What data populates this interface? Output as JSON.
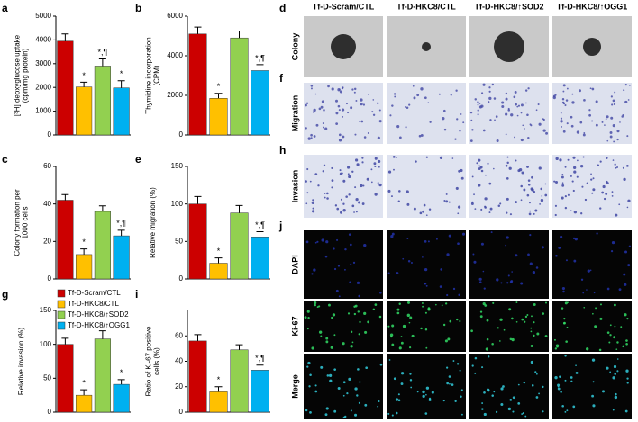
{
  "chart_data": [
    {
      "type": "bar",
      "panel": "a",
      "ylabel": [
        "[³H] deoxyglucose uptake",
        "(cpm/mg protein)"
      ],
      "ylim": [
        0,
        5000
      ],
      "yticks": [
        0,
        1000,
        2000,
        3000,
        4000,
        5000
      ],
      "values": [
        3950,
        2020,
        2900,
        1980
      ],
      "errors": [
        300,
        200,
        300,
        300
      ],
      "annotations": [
        null,
        "*",
        "*,¶",
        "*"
      ]
    },
    {
      "type": "bar",
      "panel": "b",
      "ylabel": [
        "Thymidine incorporation",
        "(CPM)"
      ],
      "ylim": [
        0,
        6000
      ],
      "yticks": [
        0,
        2000,
        4000,
        6000
      ],
      "values": [
        5100,
        1850,
        4900,
        3250
      ],
      "errors": [
        350,
        250,
        350,
        300
      ],
      "annotations": [
        null,
        "*",
        null,
        "*,¶"
      ]
    },
    {
      "type": "bar",
      "panel": "c",
      "ylabel": [
        "Colony formation per",
        "1000 cells"
      ],
      "ylim": [
        0,
        60
      ],
      "yticks": [
        0,
        20,
        40,
        60
      ],
      "values": [
        42,
        13,
        36,
        23
      ],
      "errors": [
        3,
        3,
        3,
        3
      ],
      "annotations": [
        null,
        "*",
        null,
        "*,¶"
      ]
    },
    {
      "type": "bar",
      "panel": "e",
      "ylabel": [
        "Relative migration (%)"
      ],
      "ylim": [
        0,
        150
      ],
      "yticks": [
        0,
        50,
        100,
        150
      ],
      "values": [
        100,
        21,
        88,
        56
      ],
      "errors": [
        10,
        7,
        10,
        7
      ],
      "annotations": [
        null,
        "*",
        null,
        "*,¶"
      ]
    },
    {
      "type": "bar",
      "panel": "g",
      "ylabel": [
        "Relative invasion (%)"
      ],
      "ylim": [
        0,
        150
      ],
      "yticks": [
        0,
        50,
        100,
        150
      ],
      "values": [
        100,
        25,
        108,
        41
      ],
      "errors": [
        9,
        8,
        12,
        7
      ],
      "annotations": [
        null,
        "*",
        null,
        "*"
      ]
    },
    {
      "type": "bar",
      "panel": "i",
      "ylabel": [
        "Ratio of Ki-67 positive",
        "cells (%)"
      ],
      "ylim": [
        0,
        80
      ],
      "yticks": [
        0,
        20,
        40,
        60
      ],
      "values": [
        56,
        16,
        49,
        33
      ],
      "errors": [
        5,
        4,
        4,
        4
      ],
      "annotations": [
        null,
        "*",
        null,
        "*,¶"
      ]
    }
  ],
  "legend": [
    {
      "name": "Tf-D-Scram/CTL",
      "color": "#cc0000"
    },
    {
      "name": "Tf-D-HKC8/CTL",
      "color": "#ffc000"
    },
    {
      "name": "Tf-D-HKC8/↑SOD2",
      "color": "#92d050"
    },
    {
      "name": "Tf-D-HKC8/↑OGG1",
      "color": "#00b0f0"
    }
  ],
  "images": {
    "columns": [
      "Tf-D-Scram/CTL",
      "Tf-D-HKC8/CTL",
      "Tf-D-HKC8/↑SOD2",
      "Tf-D-HKC8/↑OGG1"
    ],
    "rows": [
      {
        "panel": "d",
        "label": "Colony"
      },
      {
        "panel": "f",
        "label": "Migration"
      },
      {
        "panel": "h",
        "label": "Invasion"
      },
      {
        "panel": "j",
        "label": "DAPI"
      },
      {
        "label": "Ki-67"
      },
      {
        "label": "Merge"
      }
    ]
  }
}
